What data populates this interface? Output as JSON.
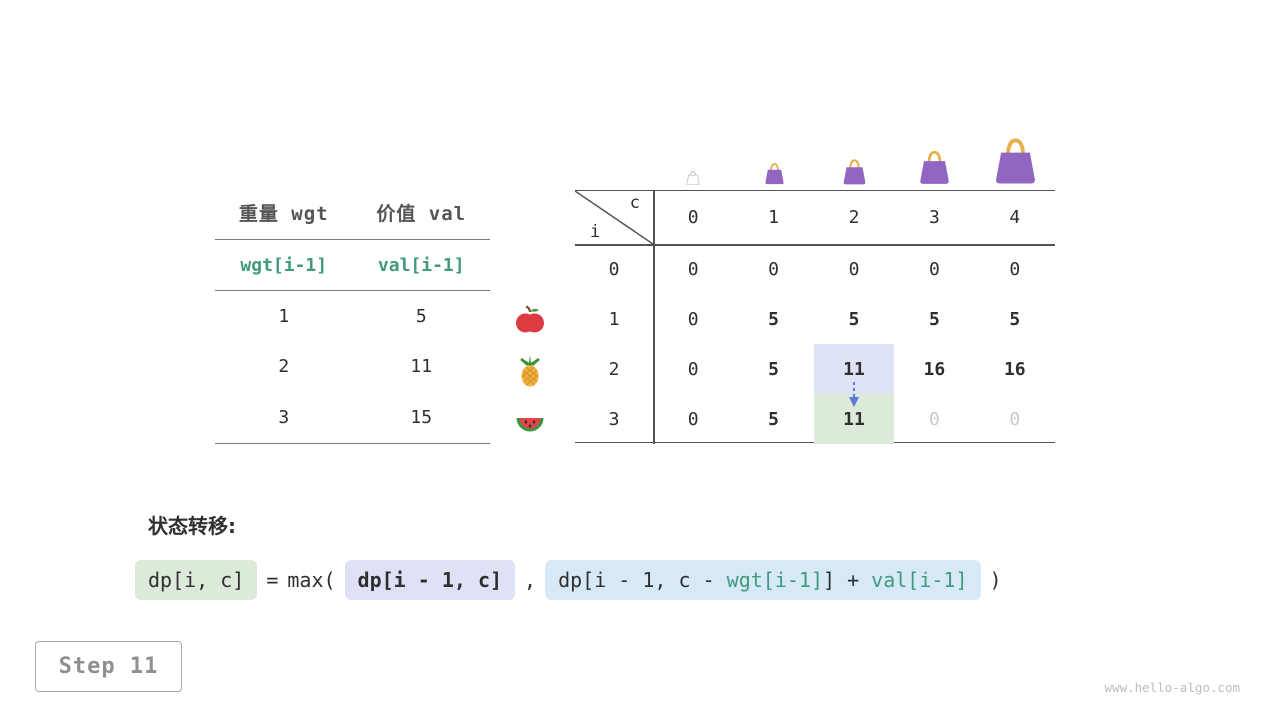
{
  "colors": {
    "teal_text": "#3f9b7c",
    "cell_highlight_blue": "#dee2f7",
    "cell_highlight_green": "#dcead9",
    "formula_green_bg": "#dcead9",
    "formula_purple_bg": "#dfe2f7",
    "formula_blue_bg": "#d7e9f6",
    "bag_purple": "#9166c2",
    "bag_handle_gold": "#e8b04a",
    "dim_value": "#c9c9c9",
    "arrow_blue": "#5c7cd8"
  },
  "items_table": {
    "col1_header": "重量 wgt",
    "col2_header": "价值 val",
    "col1_subheader": "wgt[i-1]",
    "col2_subheader": "val[i-1]",
    "rows": [
      {
        "wgt": "1",
        "val": "5",
        "fruit": "apple"
      },
      {
        "wgt": "2",
        "val": "11",
        "fruit": "pineapple"
      },
      {
        "wgt": "3",
        "val": "15",
        "fruit": "watermelon"
      }
    ]
  },
  "dp_table": {
    "corner_top": "c",
    "corner_bottom": "i",
    "col_headers": [
      "0",
      "1",
      "2",
      "3",
      "4"
    ],
    "rows": [
      {
        "header": "0",
        "cells": [
          {
            "v": "0"
          },
          {
            "v": "0"
          },
          {
            "v": "0"
          },
          {
            "v": "0"
          },
          {
            "v": "0"
          }
        ]
      },
      {
        "header": "1",
        "cells": [
          {
            "v": "0"
          },
          {
            "v": "5",
            "bold": true
          },
          {
            "v": "5",
            "bold": true
          },
          {
            "v": "5",
            "bold": true
          },
          {
            "v": "5",
            "bold": true
          }
        ]
      },
      {
        "header": "2",
        "cells": [
          {
            "v": "0"
          },
          {
            "v": "5",
            "bold": true
          },
          {
            "v": "11",
            "bold": true,
            "hl": "blue"
          },
          {
            "v": "16",
            "bold": true
          },
          {
            "v": "16",
            "bold": true
          }
        ]
      },
      {
        "header": "3",
        "cells": [
          {
            "v": "0"
          },
          {
            "v": "5",
            "bold": true
          },
          {
            "v": "11",
            "bold": true,
            "hl": "green"
          },
          {
            "v": "0",
            "dim": true
          },
          {
            "v": "0",
            "dim": true
          }
        ]
      }
    ]
  },
  "formula": {
    "label": "状态转移:",
    "lhs": "dp[i, c]",
    "equals": "=",
    "max_open": "max(",
    "arg1": "dp[i - 1, c]",
    "comma": ",",
    "arg2_prefix": "dp[i - 1, c - ",
    "arg2_wgt": "wgt[i-1]",
    "arg2_mid": "] + ",
    "arg2_val": "val[i-1]",
    "close_paren": ")"
  },
  "step_label": "Step 11",
  "watermark": "www.hello-algo.com"
}
